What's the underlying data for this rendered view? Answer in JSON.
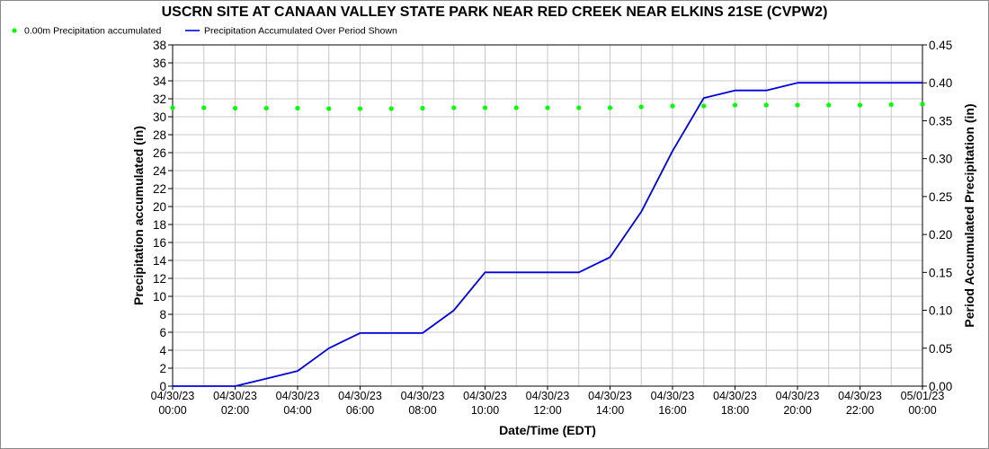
{
  "chart_data": {
    "type": "line",
    "title": "USCRN SITE AT CANAAN VALLEY STATE PARK NEAR RED CREEK NEAR ELKINS 21SE (CVPW2)",
    "xlabel": "Date/Time (EDT)",
    "ylabel_left": "Precipitation accumulated (in)",
    "ylabel_right": "Period Accumulated Precipitation (in)",
    "ylim_left": [
      0,
      38
    ],
    "ylim_right": [
      0,
      0.45
    ],
    "x_ticks": [
      {
        "date": "04/30/23",
        "time": "00:00"
      },
      {
        "date": "04/30/23",
        "time": "02:00"
      },
      {
        "date": "04/30/23",
        "time": "04:00"
      },
      {
        "date": "04/30/23",
        "time": "06:00"
      },
      {
        "date": "04/30/23",
        "time": "08:00"
      },
      {
        "date": "04/30/23",
        "time": "10:00"
      },
      {
        "date": "04/30/23",
        "time": "12:00"
      },
      {
        "date": "04/30/23",
        "time": "14:00"
      },
      {
        "date": "04/30/23",
        "time": "16:00"
      },
      {
        "date": "04/30/23",
        "time": "18:00"
      },
      {
        "date": "04/30/23",
        "time": "20:00"
      },
      {
        "date": "04/30/23",
        "time": "22:00"
      },
      {
        "date": "05/01/23",
        "time": "00:00"
      }
    ],
    "y_ticks_left": [
      "0",
      "2",
      "4",
      "6",
      "8",
      "10",
      "12",
      "14",
      "16",
      "18",
      "20",
      "22",
      "24",
      "26",
      "28",
      "30",
      "32",
      "34",
      "36",
      "38"
    ],
    "y_ticks_right": [
      "0.00",
      "0.05",
      "0.10",
      "0.15",
      "0.20",
      "0.25",
      "0.30",
      "0.35",
      "0.40",
      "0.45"
    ],
    "grid": true,
    "legend": "top-left",
    "series": [
      {
        "name": "0.00m Precipitation accumulated",
        "axis": "left",
        "style": "points",
        "color": "#00ff00",
        "x_hours": [
          0,
          1,
          2,
          3,
          4,
          5,
          6,
          7,
          8,
          9,
          10,
          11,
          12,
          13,
          14,
          15,
          16,
          17,
          18,
          19,
          20,
          21,
          22,
          23,
          24
        ],
        "values": [
          31.0,
          31.0,
          30.95,
          30.95,
          30.95,
          30.9,
          30.9,
          30.9,
          30.95,
          31.0,
          31.0,
          31.0,
          31.0,
          31.0,
          31.0,
          31.1,
          31.2,
          31.2,
          31.3,
          31.3,
          31.3,
          31.3,
          31.3,
          31.35,
          31.4
        ]
      },
      {
        "name": "Precipitation Accumulated Over Period Shown",
        "axis": "right",
        "style": "line",
        "color": "#0000dd",
        "x_hours": [
          0,
          1,
          2,
          3,
          4,
          5,
          6,
          7,
          8,
          9,
          10,
          11,
          12,
          13,
          14,
          15,
          16,
          17,
          18,
          19,
          20,
          21,
          22,
          23,
          24
        ],
        "values": [
          0.0,
          0.0,
          0.0,
          0.01,
          0.02,
          0.05,
          0.07,
          0.07,
          0.07,
          0.1,
          0.15,
          0.15,
          0.15,
          0.15,
          0.17,
          0.23,
          0.31,
          0.38,
          0.39,
          0.39,
          0.4,
          0.4,
          0.4,
          0.4,
          0.4
        ]
      }
    ]
  }
}
